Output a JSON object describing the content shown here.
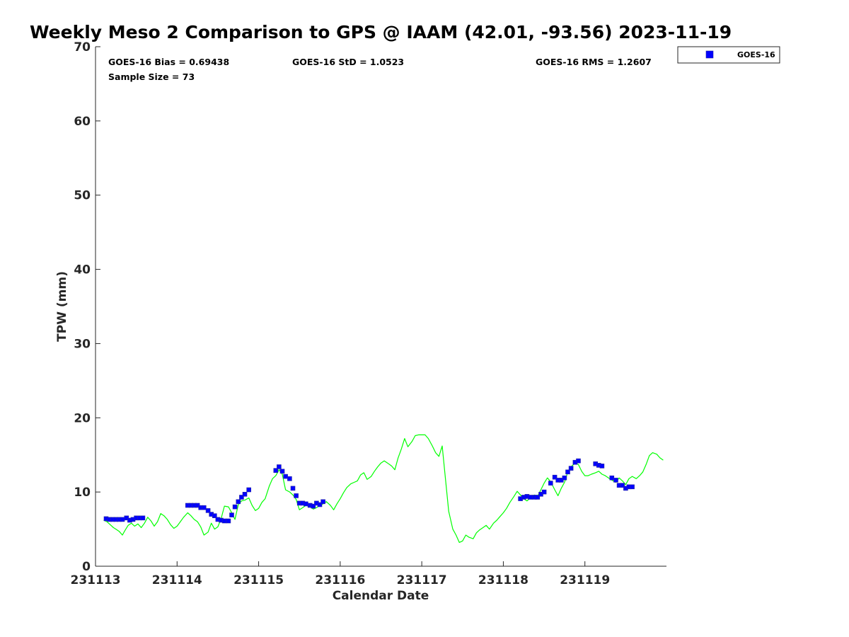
{
  "chart_data": {
    "type": "scatter",
    "title": "Weekly Meso 2 Comparison to GPS @ IAAM (42.01, -93.56) 2023-11-19",
    "xlabel": "Calendar Date",
    "ylabel": "TPW (mm)",
    "x_unit": "days",
    "xlim": [
      231113,
      231120
    ],
    "ylim": [
      0,
      70
    ],
    "x_ticks": [
      231113,
      231114,
      231115,
      231116,
      231117,
      231118,
      231119
    ],
    "x_tick_labels": [
      "231113",
      "231114",
      "231115",
      "231116",
      "231117",
      "231118",
      "231119"
    ],
    "y_ticks": [
      0,
      10,
      20,
      30,
      40,
      50,
      60,
      70
    ],
    "y_tick_labels": [
      "0",
      "10",
      "20",
      "30",
      "40",
      "50",
      "60",
      "70"
    ],
    "grid": false,
    "legend_position": "top-right-outside",
    "stats": {
      "bias": "GOES-16 Bias = 0.69438",
      "std": "GOES-16 StD = 1.0523",
      "rms": "GOES-16 RMS = 1.2607",
      "sample": "Sample Size = 73"
    },
    "series": [
      {
        "name": "GOES-16",
        "kind": "markers",
        "color": "#0000ff",
        "edge_color": "#2a2aa0",
        "x": [
          231113.13,
          231113.17,
          231113.21,
          231113.25,
          231113.29,
          231113.33,
          231113.38,
          231113.42,
          231113.46,
          231113.5,
          231113.54,
          231113.58,
          231114.13,
          231114.17,
          231114.21,
          231114.25,
          231114.29,
          231114.33,
          231114.38,
          231114.42,
          231114.46,
          231114.5,
          231114.54,
          231114.58,
          231114.63,
          231114.67,
          231114.71,
          231114.75,
          231114.79,
          231114.83,
          231114.88,
          231115.21,
          231115.25,
          231115.29,
          231115.33,
          231115.38,
          231115.42,
          231115.46,
          231115.5,
          231115.54,
          231115.58,
          231115.63,
          231115.67,
          231115.71,
          231115.75,
          231115.79,
          231118.21,
          231118.25,
          231118.29,
          231118.33,
          231118.38,
          231118.42,
          231118.46,
          231118.5,
          231118.58,
          231118.63,
          231118.67,
          231118.71,
          231118.75,
          231118.79,
          231118.83,
          231118.88,
          231118.92,
          231119.13,
          231119.17,
          231119.21,
          231119.33,
          231119.38,
          231119.42,
          231119.46,
          231119.5,
          231119.54,
          231119.58
        ],
        "y": [
          6.4,
          6.3,
          6.3,
          6.3,
          6.3,
          6.3,
          6.5,
          6.2,
          6.3,
          6.5,
          6.5,
          6.5,
          8.2,
          8.2,
          8.2,
          8.2,
          7.9,
          7.9,
          7.5,
          7.0,
          6.8,
          6.3,
          6.2,
          6.1,
          6.1,
          6.9,
          8.0,
          8.7,
          9.3,
          9.7,
          10.3,
          12.9,
          13.4,
          12.8,
          12.1,
          11.8,
          10.5,
          9.5,
          8.5,
          8.5,
          8.4,
          8.2,
          8.1,
          8.5,
          8.3,
          8.7,
          9.1,
          9.3,
          9.4,
          9.3,
          9.3,
          9.3,
          9.7,
          10.0,
          11.2,
          12.0,
          11.6,
          11.6,
          11.9,
          12.7,
          13.2,
          14.0,
          14.2,
          13.8,
          13.6,
          13.5,
          11.9,
          11.6,
          10.9,
          10.9,
          10.5,
          10.7,
          10.7
        ]
      },
      {
        "kind": "line",
        "color": "#00ff00",
        "x": [
          231113.1,
          231113.14,
          231113.18,
          231113.22,
          231113.25,
          231113.29,
          231113.33,
          231113.36,
          231113.4,
          231113.44,
          231113.48,
          231113.52,
          231113.56,
          231113.6,
          231113.64,
          231113.68,
          231113.72,
          231113.76,
          231113.8,
          231113.84,
          231113.88,
          231113.92,
          231113.96,
          231114.0,
          231114.04,
          231114.08,
          231114.13,
          231114.17,
          231114.21,
          231114.25,
          231114.29,
          231114.33,
          231114.38,
          231114.42,
          231114.46,
          231114.5,
          231114.54,
          231114.58,
          231114.63,
          231114.67,
          231114.71,
          231114.75,
          231114.79,
          231114.83,
          231114.88,
          231114.92,
          231114.96,
          231115.0,
          231115.04,
          231115.08,
          231115.13,
          231115.17,
          231115.21,
          231115.25,
          231115.29,
          231115.33,
          231115.38,
          231115.42,
          231115.46,
          231115.5,
          231115.54,
          231115.58,
          231115.63,
          231115.67,
          231115.71,
          231115.75,
          231115.79,
          231115.83,
          231115.88,
          231115.92,
          231115.96,
          231116.0,
          231116.04,
          231116.08,
          231116.13,
          231116.17,
          231116.21,
          231116.25,
          231116.29,
          231116.33,
          231116.38,
          231116.42,
          231116.46,
          231116.5,
          231116.54,
          231116.58,
          231116.63,
          231116.67,
          231116.71,
          231116.75,
          231116.79,
          231116.83,
          231116.88,
          231116.92,
          231116.96,
          231117.0,
          231117.04,
          231117.08,
          231117.13,
          231117.17,
          231117.21,
          231117.25,
          231117.29,
          231117.33,
          231117.38,
          231117.42,
          231117.46,
          231117.5,
          231117.54,
          231117.58,
          231117.63,
          231117.67,
          231117.71,
          231117.75,
          231117.79,
          231117.83,
          231117.88,
          231117.92,
          231117.96,
          231118.0,
          231118.04,
          231118.08,
          231118.13,
          231118.17,
          231118.21,
          231118.25,
          231118.29,
          231118.33,
          231118.38,
          231118.42,
          231118.46,
          231118.5,
          231118.54,
          231118.58,
          231118.63,
          231118.67,
          231118.71,
          231118.75,
          231118.79,
          231118.83,
          231118.88,
          231118.92,
          231118.96,
          231119.0,
          231119.04,
          231119.08,
          231119.13,
          231119.17,
          231119.21,
          231119.25,
          231119.29,
          231119.33,
          231119.38,
          231119.42,
          231119.46,
          231119.5,
          231119.54,
          231119.58,
          231119.63,
          231119.67,
          231119.71,
          231119.75,
          231119.79,
          231119.83,
          231119.88,
          231119.92,
          231119.96
        ],
        "y": [
          6.2,
          6.0,
          5.6,
          5.2,
          5.0,
          4.7,
          4.2,
          4.8,
          5.5,
          5.8,
          5.4,
          5.7,
          5.2,
          5.8,
          6.6,
          6.1,
          5.4,
          6.0,
          7.1,
          6.8,
          6.3,
          5.6,
          5.1,
          5.4,
          6.0,
          6.6,
          7.2,
          6.8,
          6.3,
          6.0,
          5.3,
          4.2,
          4.6,
          5.8,
          5.0,
          5.3,
          6.4,
          8.1,
          8.0,
          7.2,
          6.3,
          8.3,
          8.8,
          8.9,
          9.2,
          8.2,
          7.5,
          7.8,
          8.6,
          9.1,
          10.8,
          11.8,
          12.2,
          13.0,
          12.4,
          10.3,
          10.0,
          9.6,
          9.0,
          7.6,
          7.9,
          8.2,
          8.0,
          7.7,
          7.9,
          8.2,
          8.4,
          8.7,
          8.2,
          7.6,
          8.4,
          9.1,
          9.9,
          10.6,
          11.1,
          11.3,
          11.5,
          12.3,
          12.6,
          11.7,
          12.1,
          12.8,
          13.4,
          13.9,
          14.2,
          13.9,
          13.5,
          13.0,
          14.6,
          15.8,
          17.2,
          16.1,
          16.8,
          17.6,
          17.7,
          17.7,
          17.7,
          17.2,
          16.2,
          15.3,
          14.8,
          16.2,
          11.8,
          7.4,
          5.0,
          4.2,
          3.2,
          3.4,
          4.2,
          3.9,
          3.7,
          4.5,
          4.9,
          5.2,
          5.5,
          5.0,
          5.8,
          6.2,
          6.7,
          7.2,
          7.8,
          8.6,
          9.4,
          10.1,
          9.6,
          9.1,
          8.8,
          9.2,
          9.6,
          9.4,
          10.3,
          11.2,
          11.9,
          11.4,
          10.3,
          9.5,
          10.5,
          11.3,
          12.7,
          13.4,
          13.9,
          13.7,
          12.8,
          12.2,
          12.2,
          12.4,
          12.6,
          12.8,
          12.4,
          12.2,
          11.9,
          11.6,
          11.3,
          11.9,
          11.5,
          11.0,
          11.8,
          12.1,
          11.8,
          12.2,
          12.7,
          13.7,
          14.9,
          15.3,
          15.1,
          14.6,
          14.3
        ]
      }
    ]
  }
}
